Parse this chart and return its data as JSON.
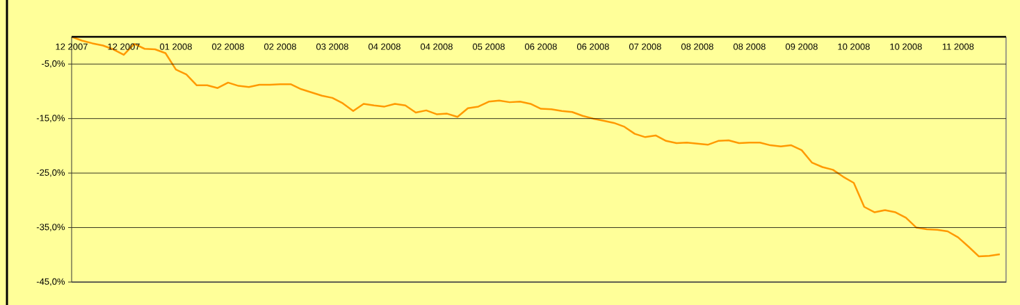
{
  "chart_data": {
    "type": "line",
    "categories": [
      "12 2007",
      null,
      null,
      null,
      null,
      "12 2007",
      null,
      null,
      null,
      null,
      "01 2008",
      null,
      null,
      null,
      null,
      "02 2008",
      null,
      null,
      null,
      null,
      "02 2008",
      null,
      null,
      null,
      null,
      "03 2008",
      null,
      null,
      null,
      null,
      "04 2008",
      null,
      null,
      null,
      null,
      "04 2008",
      null,
      null,
      null,
      null,
      "05 2008",
      null,
      null,
      null,
      null,
      "06 2008",
      null,
      null,
      null,
      null,
      "06 2008",
      null,
      null,
      null,
      null,
      "07 2008",
      null,
      null,
      null,
      null,
      "08 2008",
      null,
      null,
      null,
      null,
      "08 2008",
      null,
      null,
      null,
      null,
      "09 2008",
      null,
      null,
      null,
      null,
      "10 2008",
      null,
      null,
      null,
      null,
      "10 2008",
      null,
      null,
      null,
      null,
      "11 2008",
      null,
      null,
      null,
      null
    ],
    "values": [
      0.0,
      -0.7,
      -1.2,
      -1.6,
      -2.3,
      -3.3,
      -1.3,
      -2.2,
      -2.3,
      -3.0,
      -6.0,
      -6.9,
      -8.9,
      -8.9,
      -9.4,
      -8.4,
      -9.0,
      -9.2,
      -8.8,
      -8.8,
      -8.7,
      -8.7,
      -9.6,
      -10.2,
      -10.8,
      -11.2,
      -12.2,
      -13.6,
      -12.3,
      -12.6,
      -12.8,
      -12.3,
      -12.6,
      -13.9,
      -13.5,
      -14.2,
      -14.1,
      -14.7,
      -13.1,
      -12.8,
      -11.9,
      -11.7,
      -12.0,
      -11.9,
      -12.3,
      -13.2,
      -13.3,
      -13.6,
      -13.8,
      -14.5,
      -15.0,
      -15.4,
      -15.8,
      -16.5,
      -17.8,
      -18.4,
      -18.1,
      -19.1,
      -19.5,
      -19.4,
      -19.6,
      -19.8,
      -19.1,
      -19.0,
      -19.5,
      -19.4,
      -19.4,
      -19.9,
      -20.1,
      -19.9,
      -20.8,
      -23.1,
      -23.9,
      -24.4,
      -25.7,
      -26.8,
      -31.2,
      -32.2,
      -31.8,
      -32.2,
      -33.2,
      -35.0,
      -35.3,
      -35.4,
      -35.7,
      -36.8,
      -38.5,
      -40.3,
      -40.2,
      -39.9
    ],
    "color": "#ff9900",
    "ylim": [
      -45,
      0
    ],
    "yticks": [
      {
        "value": -5,
        "label": "-5,0%"
      },
      {
        "value": -15,
        "label": "-15,0%"
      },
      {
        "value": -25,
        "label": "-25,0%"
      },
      {
        "value": -35,
        "label": "-35,0%"
      },
      {
        "value": -45,
        "label": "-45,0%"
      }
    ],
    "grid": "y",
    "marker": "none",
    "line_style": "solid"
  }
}
